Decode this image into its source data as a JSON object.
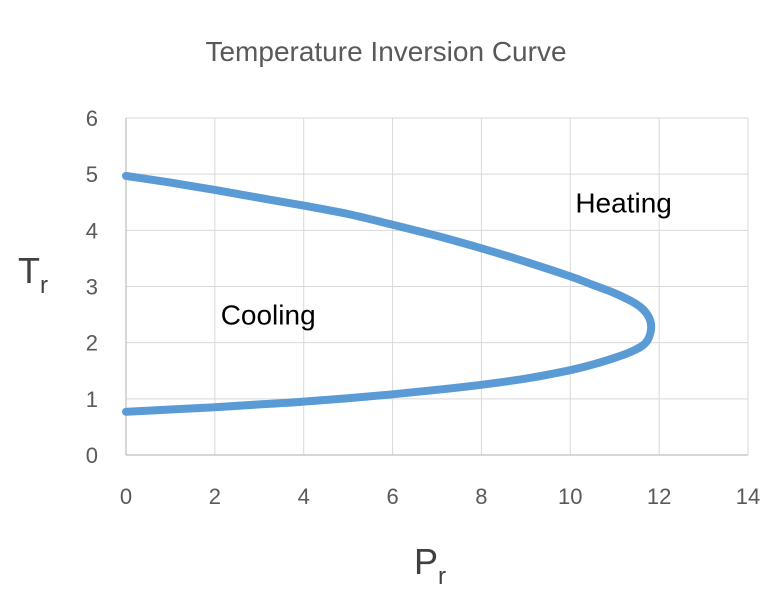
{
  "chart_data": {
    "type": "line",
    "title": "Temperature Inversion Curve",
    "xlabel": {
      "main": "P",
      "sub": "r"
    },
    "ylabel": {
      "main": "T",
      "sub": "r"
    },
    "xlim": [
      0,
      14
    ],
    "ylim": [
      0,
      6
    ],
    "xticks": [
      0,
      2,
      4,
      6,
      8,
      10,
      12,
      14
    ],
    "yticks": [
      0,
      1,
      2,
      3,
      4,
      5,
      6
    ],
    "grid": true,
    "series": [
      {
        "color": "#5b9bd5",
        "x": [
          0,
          1,
          2,
          3,
          4,
          5,
          6,
          7,
          8,
          9,
          10,
          10.5,
          11,
          11.4,
          11.7,
          11.82,
          11.75,
          11.5,
          11,
          10.5,
          10,
          9,
          8,
          7,
          6,
          5,
          4,
          3,
          2,
          1,
          0
        ],
        "y": [
          0.77,
          0.81,
          0.85,
          0.9,
          0.95,
          1.01,
          1.08,
          1.16,
          1.25,
          1.36,
          1.51,
          1.61,
          1.73,
          1.85,
          2.0,
          2.25,
          2.48,
          2.68,
          2.88,
          3.03,
          3.18,
          3.44,
          3.68,
          3.9,
          4.1,
          4.29,
          4.44,
          4.58,
          4.72,
          4.85,
          4.97
        ]
      }
    ],
    "annotations": [
      {
        "text": "Heating",
        "x": 11.2,
        "y": 4.5
      },
      {
        "text": "Cooling",
        "x": 3.2,
        "y": 2.5
      }
    ]
  }
}
